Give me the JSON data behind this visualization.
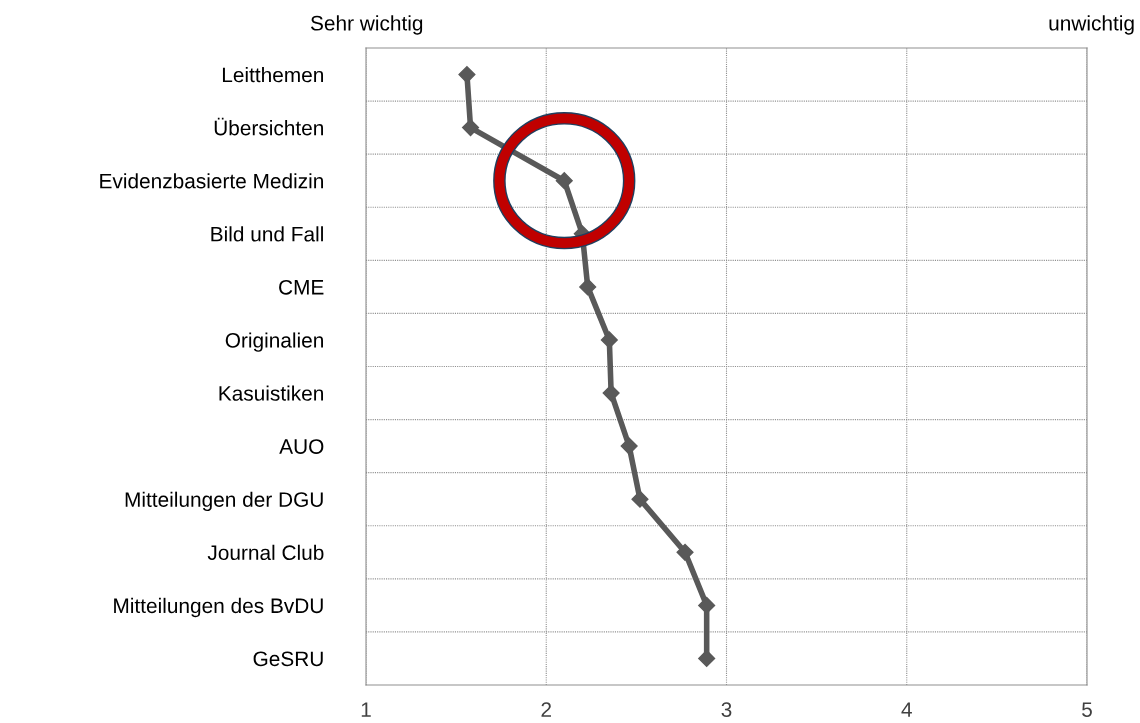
{
  "chart_data": {
    "type": "line",
    "orientation": "horizontal",
    "categories": [
      "Leitthemen",
      "Übersichten",
      "Evidenzbasierte Medizin",
      "Bild und Fall",
      "CME",
      "Originalien",
      "Kasuistiken",
      "AUO",
      "Mitteilungen der DGU",
      "Journal Club",
      "Mitteilungen des BvDU",
      "GeSRU"
    ],
    "values": [
      1.56,
      1.58,
      2.1,
      2.2,
      2.23,
      2.35,
      2.36,
      2.46,
      2.52,
      2.77,
      2.89,
      2.89
    ],
    "color": "#595959",
    "marker": "diamond",
    "line_style": "solid",
    "xlim": [
      1,
      5
    ],
    "xticks": [
      1,
      2,
      3,
      4,
      5
    ],
    "annotations": [
      "Sehr wichtig",
      "unwichtig"
    ],
    "grid": true,
    "legend": false
  }
}
